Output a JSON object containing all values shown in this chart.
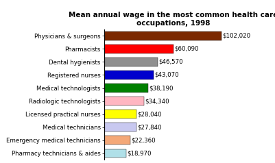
{
  "title": "Mean annual wage in the most common health care\noccupations, 1998",
  "categories": [
    "Pharmacy technicians & aides",
    "Emergency medical technicians",
    "Medical technicians",
    "Licensed practical nurses",
    "Radiologic technologists",
    "Medical technologists",
    "Registered nurses",
    "Dental hygienists",
    "Pharmacists",
    "Physicians & surgeons"
  ],
  "values": [
    18970,
    22360,
    27840,
    28040,
    34340,
    38190,
    43070,
    46570,
    60090,
    102020
  ],
  "bar_colors": [
    "#b0e0e8",
    "#f4a878",
    "#c8c8f0",
    "#ffff00",
    "#ffb6c1",
    "#008000",
    "#0000cd",
    "#909090",
    "#ff0000",
    "#7b2800"
  ],
  "value_labels": [
    "$18,970",
    "$22,360",
    "$27,840",
    "$28,040",
    "$34,340",
    "$38,190",
    "$43,070",
    "$46,570",
    "$60,090",
    "$102,020"
  ],
  "xlim": [
    0,
    120000
  ],
  "background_color": "#ffffff",
  "title_fontsize": 7.5,
  "label_fontsize": 6.2,
  "value_fontsize": 6.2
}
